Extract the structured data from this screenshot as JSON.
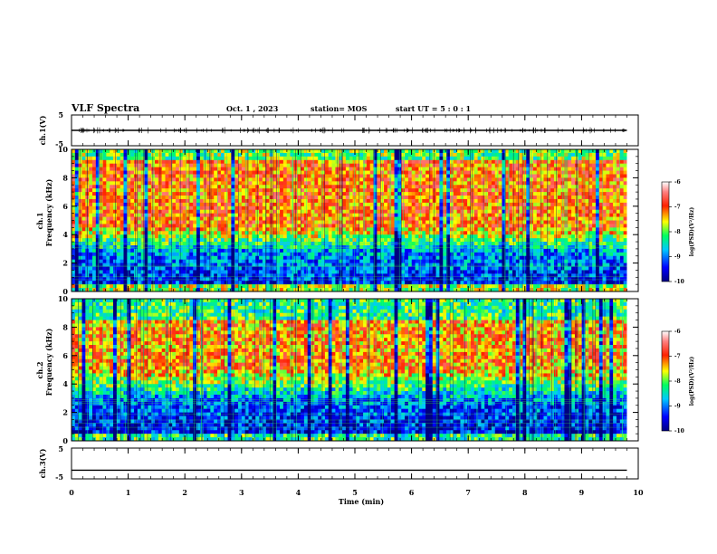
{
  "header": {
    "title": "VLF Spectra",
    "date": "Oct. 1 , 2023",
    "station": "station= MOS",
    "start": "start UT =  5 : 0 : 1"
  },
  "chart_data": [
    {
      "type": "line",
      "panel": "ch1-waveform",
      "ylabel": "ch.1(V)",
      "ylim": [
        -5,
        5
      ],
      "ytick_labels": [
        "5",
        "-5"
      ],
      "series": [
        {
          "values": [
            0,
            0
          ]
        }
      ],
      "x": [
        0,
        9.8
      ]
    },
    {
      "type": "heatmap",
      "panel": "ch1-spectrogram",
      "ylabel": "ch.1\nFrequency (kHz)",
      "ylim": [
        0,
        10
      ],
      "ytick_labels": [
        "0",
        "2",
        "4",
        "6",
        "8",
        "10"
      ],
      "x_range_min": [
        0,
        9.8
      ],
      "colorbar": {
        "label": "log(PSD)(V²/Hz)",
        "range": [
          -10,
          -6
        ],
        "tick_labels": [
          "-6",
          "-7",
          "-8",
          "-9",
          "-10"
        ],
        "colors": [
          "#000080",
          "#0000ff",
          "#00ffff",
          "#00ff00",
          "#ffff00",
          "#ff0000",
          "#ffffff"
        ]
      }
    },
    {
      "type": "heatmap",
      "panel": "ch2-spectrogram",
      "ylabel": "ch.2\nFrequency (kHz)",
      "ylim": [
        0,
        10
      ],
      "ytick_labels": [
        "0",
        "2",
        "4",
        "6",
        "8",
        "10"
      ],
      "x_range_min": [
        0,
        9.8
      ],
      "colorbar": {
        "label": "log(PSD)(V²/Hz)",
        "range": [
          -10,
          -6
        ],
        "tick_labels": [
          "-6",
          "-7",
          "-8",
          "-9",
          "-10"
        ],
        "colors": [
          "#000080",
          "#0000ff",
          "#00ffff",
          "#00ff00",
          "#ffff00",
          "#ff0000",
          "#ffffff"
        ]
      }
    },
    {
      "type": "line",
      "panel": "ch3-waveform",
      "ylabel": "ch.3(V)",
      "ylim": [
        -5,
        5
      ],
      "ytick_labels": [
        "5",
        "-5"
      ],
      "series": [
        {
          "values": [
            -2.2,
            -2.2
          ]
        }
      ],
      "x": [
        0,
        9.8
      ]
    }
  ],
  "xaxis": {
    "label": "Time  (min)",
    "range": [
      0,
      10
    ],
    "tick_labels": [
      "0",
      "1",
      "2",
      "3",
      "4",
      "5",
      "6",
      "7",
      "8",
      "9",
      "10"
    ]
  }
}
